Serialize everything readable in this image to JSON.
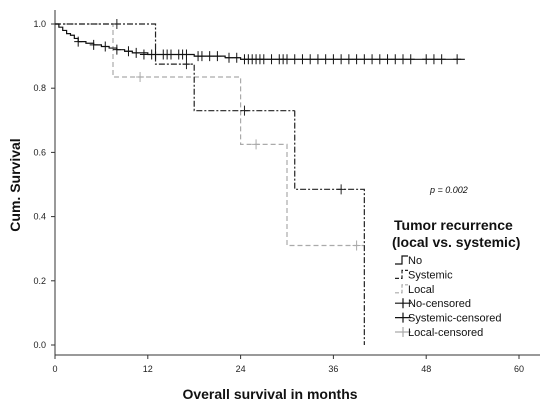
{
  "chart_data": {
    "type": "line",
    "subtype": "kaplan-meier",
    "xlabel": "Overall survival in months",
    "ylabel": "Cum. Survival",
    "xlim": [
      0,
      60
    ],
    "ylim": [
      0,
      1
    ],
    "x_ticks": [
      "0",
      "12",
      "24",
      "36",
      "48",
      "60"
    ],
    "y_ticks": [
      "0.0",
      "0.2",
      "0.4",
      "0.6",
      "0.8",
      "1.0"
    ],
    "annotation": "p = 0.002",
    "grid": false,
    "legend": {
      "position": "right",
      "title_line1": "Tumor recurrence",
      "title_line2": "(local vs. systemic)",
      "entries": [
        "No",
        "Systemic",
        "Local",
        "No-censored",
        "Systemic-censored",
        "Local-censored"
      ]
    },
    "series": [
      {
        "name": "No",
        "color": "#111111",
        "dash": "none",
        "steps": [
          [
            0,
            1.0
          ],
          [
            0.5,
            0.99
          ],
          [
            1,
            0.98
          ],
          [
            1.5,
            0.97
          ],
          [
            2,
            0.965
          ],
          [
            2.5,
            0.955
          ],
          [
            3,
            0.945
          ],
          [
            4,
            0.94
          ],
          [
            5,
            0.935
          ],
          [
            6,
            0.93
          ],
          [
            7,
            0.925
          ],
          [
            8,
            0.92
          ],
          [
            9,
            0.915
          ],
          [
            10,
            0.91
          ],
          [
            12,
            0.905
          ],
          [
            14,
            0.905
          ],
          [
            16,
            0.905
          ],
          [
            17,
            0.905
          ],
          [
            18,
            0.9
          ],
          [
            20,
            0.9
          ],
          [
            22,
            0.895
          ],
          [
            23,
            0.895
          ],
          [
            24,
            0.89
          ],
          [
            26,
            0.89
          ],
          [
            53,
            0.89
          ]
        ],
        "censored": [
          [
            3,
            0.945
          ],
          [
            5,
            0.935
          ],
          [
            6.5,
            0.93
          ],
          [
            8,
            0.92
          ],
          [
            9.5,
            0.915
          ],
          [
            10.5,
            0.91
          ],
          [
            11.5,
            0.905
          ],
          [
            12.5,
            0.905
          ],
          [
            13,
            0.905
          ],
          [
            14,
            0.905
          ],
          [
            14.5,
            0.905
          ],
          [
            15,
            0.905
          ],
          [
            16,
            0.905
          ],
          [
            16.5,
            0.905
          ],
          [
            17,
            0.905
          ],
          [
            18.5,
            0.9
          ],
          [
            19,
            0.9
          ],
          [
            20,
            0.9
          ],
          [
            21,
            0.9
          ],
          [
            22.5,
            0.895
          ],
          [
            23.5,
            0.895
          ],
          [
            24.5,
            0.89
          ],
          [
            25,
            0.89
          ],
          [
            25.5,
            0.89
          ],
          [
            26,
            0.89
          ],
          [
            26.5,
            0.89
          ],
          [
            27,
            0.89
          ],
          [
            28,
            0.89
          ],
          [
            29,
            0.89
          ],
          [
            29.5,
            0.89
          ],
          [
            30,
            0.89
          ],
          [
            31,
            0.89
          ],
          [
            32,
            0.89
          ],
          [
            33,
            0.89
          ],
          [
            34,
            0.89
          ],
          [
            35,
            0.89
          ],
          [
            36,
            0.89
          ],
          [
            37,
            0.89
          ],
          [
            38,
            0.89
          ],
          [
            39,
            0.89
          ],
          [
            40,
            0.89
          ],
          [
            41,
            0.89
          ],
          [
            42,
            0.89
          ],
          [
            43,
            0.89
          ],
          [
            44,
            0.89
          ],
          [
            45,
            0.89
          ],
          [
            46,
            0.89
          ],
          [
            48,
            0.89
          ],
          [
            49,
            0.89
          ],
          [
            50,
            0.89
          ],
          [
            52,
            0.89
          ]
        ]
      },
      {
        "name": "Systemic",
        "color": "#222222",
        "dash": "6,2,2,2",
        "steps": [
          [
            0,
            1.0
          ],
          [
            13,
            1.0
          ],
          [
            13,
            0.875
          ],
          [
            18,
            0.875
          ],
          [
            18,
            0.73
          ],
          [
            24,
            0.73
          ],
          [
            24,
            0.73
          ],
          [
            31,
            0.73
          ],
          [
            31,
            0.73
          ]
        ],
        "censored": [
          [
            8,
            1.0
          ],
          [
            17,
            0.875
          ],
          [
            24.5,
            0.73
          ],
          [
            37,
            0.485
          ]
        ]
      },
      {
        "name": "Local",
        "color": "#aaaaaa",
        "dash": "5,3",
        "steps": [
          [
            0,
            1.0
          ],
          [
            7.5,
            1.0
          ],
          [
            7.5,
            0.835
          ],
          [
            18,
            0.835
          ],
          [
            18,
            0.835
          ],
          [
            24,
            0.835
          ],
          [
            24,
            0.625
          ],
          [
            30,
            0.625
          ],
          [
            30,
            0.31
          ],
          [
            40,
            0.31
          ]
        ],
        "censored": [
          [
            11,
            0.835
          ],
          [
            26,
            0.625
          ],
          [
            39,
            0.31
          ]
        ]
      }
    ]
  }
}
